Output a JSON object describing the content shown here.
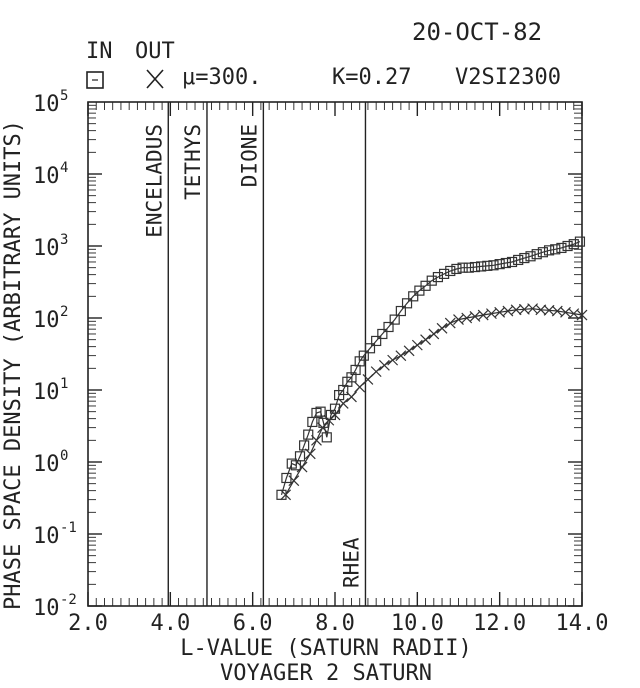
{
  "header": {
    "date": "20-OCT-82",
    "in_label": "IN",
    "out_label": "OUT",
    "mu": "μ=300.",
    "k": "K=0.27",
    "code": "V2SI2300"
  },
  "chart_data": {
    "type": "scatter",
    "title": "VOYAGER 2 SATURN",
    "xlabel": "L-VALUE (SATURN RADII)",
    "ylabel": "PHASE SPACE DENSITY (ARBITRARY UNITS)",
    "xlim": [
      2.0,
      14.0
    ],
    "ylim": [
      0.01,
      100000
    ],
    "yscale": "log",
    "x_ticks": [
      "2.0",
      "4.0",
      "6.0",
      "8.0",
      "10.0",
      "12.0",
      "14.0"
    ],
    "y_ticks": [
      {
        "base": "10",
        "exp": "5"
      },
      {
        "base": "10",
        "exp": "4"
      },
      {
        "base": "10",
        "exp": "3"
      },
      {
        "base": "10",
        "exp": "2"
      },
      {
        "base": "10",
        "exp": "1"
      },
      {
        "base": "10",
        "exp": "0"
      },
      {
        "base": "10",
        "exp": "-1"
      },
      {
        "base": "10",
        "exp": "-2"
      }
    ],
    "moons": [
      {
        "name": "ENCELADUS",
        "L": 3.95,
        "label_pos": "top"
      },
      {
        "name": "TETHYS",
        "L": 4.89,
        "label_pos": "top"
      },
      {
        "name": "DIONE",
        "L": 6.26,
        "label_pos": "top"
      },
      {
        "name": "RHEA",
        "L": 8.74,
        "label_pos": "bottom"
      }
    ],
    "series": [
      {
        "name": "IN",
        "marker": "square",
        "x": [
          6.7,
          6.82,
          6.95,
          7.05,
          7.15,
          7.25,
          7.35,
          7.45,
          7.55,
          7.65,
          7.72,
          7.8,
          7.9,
          8.0,
          8.1,
          8.2,
          8.3,
          8.4,
          8.5,
          8.6,
          8.7,
          8.85,
          9.0,
          9.15,
          9.3,
          9.45,
          9.6,
          9.75,
          9.9,
          10.05,
          10.2,
          10.35,
          10.5,
          10.65,
          10.8,
          10.95,
          11.1,
          11.25,
          11.4,
          11.55,
          11.7,
          11.85,
          12.0,
          12.15,
          12.3,
          12.45,
          12.6,
          12.75,
          12.9,
          13.05,
          13.2,
          13.35,
          13.5,
          13.65,
          13.8,
          13.95
        ],
        "y": [
          0.35,
          0.6,
          0.95,
          0.9,
          1.2,
          1.7,
          2.4,
          3.6,
          4.8,
          5.0,
          3.5,
          2.2,
          4.5,
          5.5,
          8.5,
          10.0,
          13.0,
          15.0,
          19.0,
          25.0,
          30.0,
          38.0,
          48.0,
          60.0,
          75.0,
          95.0,
          125.0,
          160.0,
          200.0,
          240.0,
          280.0,
          330.0,
          370.0,
          410.0,
          450.0,
          480.0,
          500.0,
          500.0,
          510.0,
          520.0,
          530.0,
          540.0,
          560.0,
          580.0,
          600.0,
          640.0,
          680.0,
          720.0,
          770.0,
          820.0,
          870.0,
          900.0,
          940.0,
          1000.0,
          1060.0,
          1150.0
        ]
      },
      {
        "name": "OUT",
        "marker": "x",
        "x": [
          6.8,
          7.0,
          7.2,
          7.4,
          7.55,
          7.7,
          7.85,
          8.0,
          8.2,
          8.4,
          8.6,
          8.8,
          9.0,
          9.2,
          9.4,
          9.6,
          9.8,
          10.0,
          10.2,
          10.4,
          10.6,
          10.8,
          11.0,
          11.2,
          11.4,
          11.6,
          11.8,
          12.0,
          12.2,
          12.4,
          12.6,
          12.8,
          13.0,
          13.2,
          13.4,
          13.6,
          13.8,
          14.0
        ],
        "y": [
          0.35,
          0.55,
          0.85,
          1.3,
          2.0,
          3.0,
          3.8,
          4.5,
          6.5,
          8.0,
          11.0,
          14.0,
          18.0,
          22.0,
          26.0,
          30.0,
          35.0,
          42.0,
          50.0,
          60.0,
          72.0,
          85.0,
          95.0,
          100.0,
          105.0,
          110.0,
          115.0,
          120.0,
          125.0,
          130.0,
          132.0,
          135.0,
          130.0,
          128.0,
          125.0,
          120.0,
          115.0,
          110.0
        ]
      }
    ]
  }
}
